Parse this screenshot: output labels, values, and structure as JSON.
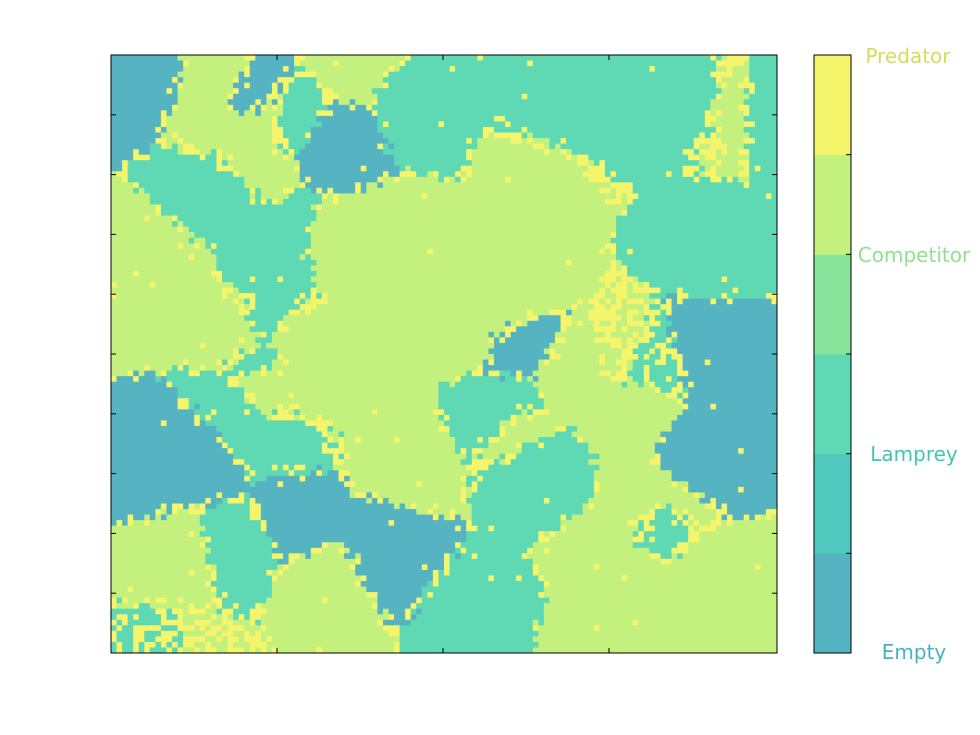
{
  "chart_data": {
    "type": "heatmap",
    "title": "",
    "xlabel": "",
    "ylabel": "",
    "grid": false,
    "legend": "colorbar-right",
    "states": [
      {
        "name": "Empty",
        "value": 0,
        "color": "#56b4c2"
      },
      {
        "name": "Lamprey",
        "value": 1,
        "color": "#5fd8b4"
      },
      {
        "name": "Competitor",
        "value": 2,
        "color": "#c4f07e"
      },
      {
        "name": "Predator",
        "value": 3,
        "color": "#f5f56b"
      }
    ],
    "colorbar": {
      "ticks": [
        "Empty",
        "Lamprey",
        "Competitor",
        "Predator"
      ],
      "tick_colors": [
        "#45b3bf",
        "#3fc6b6",
        "#8fe08f",
        "#d9d95e"
      ],
      "segments": [
        "#56b4c2",
        "#4fc8be",
        "#5fd8b4",
        "#88e39a",
        "#c4f07e",
        "#f5f56b"
      ]
    },
    "grid_cols": 120,
    "grid_rows": 108,
    "seed": 7
  }
}
